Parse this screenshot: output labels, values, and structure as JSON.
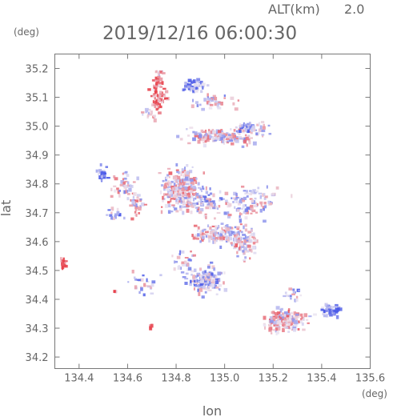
{
  "header": {
    "alt_label": "ALT(km)",
    "alt_value": "2.0",
    "timestamp": "2019/12/16 06:00:30"
  },
  "chart_data": {
    "type": "heatmap",
    "title": "2019/12/16 06:00:30",
    "xlabel": "lon",
    "ylabel": "lat",
    "xunit": "(deg)",
    "yunit": "(deg)",
    "xlim": [
      134.3,
      135.6
    ],
    "ylim": [
      34.16,
      35.25
    ],
    "grid": false,
    "xticks": [
      134.4,
      134.6,
      134.8,
      135.0,
      135.2,
      135.4,
      135.6
    ],
    "xtick_labels": [
      "134.4",
      "134.6",
      "134.8",
      "135.0",
      "135.2",
      "135.4",
      "135.6"
    ],
    "yticks": [
      34.2,
      34.3,
      34.4,
      34.5,
      34.6,
      34.7,
      34.8,
      34.9,
      35.0,
      35.1,
      35.2
    ],
    "ytick_labels": [
      "34.2",
      "34.3",
      "34.4",
      "34.5",
      "34.6",
      "34.7",
      "34.8",
      "34.9",
      "35.0",
      "35.1",
      "35.2"
    ],
    "colors": {
      "positive": "#e8404a",
      "negative": "#4a5ae8",
      "neutral": "#ece6f2"
    },
    "clusters": [
      {
        "lon": 134.72,
        "lat": 35.11,
        "slon": 0.02,
        "slat": 0.04,
        "count": 70,
        "bias": 0.75
      },
      {
        "lon": 134.73,
        "lat": 35.19,
        "slon": 0.01,
        "slat": 0.005,
        "count": 10,
        "bias": 0.2
      },
      {
        "lon": 134.68,
        "lat": 35.05,
        "slon": 0.015,
        "slat": 0.015,
        "count": 15,
        "bias": 0.3
      },
      {
        "lon": 134.87,
        "lat": 35.14,
        "slon": 0.03,
        "slat": 0.015,
        "count": 50,
        "bias": -0.6
      },
      {
        "lon": 134.95,
        "lat": 35.09,
        "slon": 0.06,
        "slat": 0.02,
        "count": 40,
        "bias": -0.1
      },
      {
        "lon": 134.99,
        "lat": 34.97,
        "slon": 0.11,
        "slat": 0.02,
        "count": 170,
        "bias": 0.05
      },
      {
        "lon": 135.09,
        "lat": 35.0,
        "slon": 0.03,
        "slat": 0.012,
        "count": 30,
        "bias": -0.5
      },
      {
        "lon": 135.15,
        "lat": 35.0,
        "slon": 0.02,
        "slat": 0.012,
        "count": 12,
        "bias": -0.2
      },
      {
        "lon": 134.49,
        "lat": 34.84,
        "slon": 0.015,
        "slat": 0.02,
        "count": 20,
        "bias": -0.8
      },
      {
        "lon": 134.57,
        "lat": 34.79,
        "slon": 0.04,
        "slat": 0.03,
        "count": 40,
        "bias": 0.0
      },
      {
        "lon": 134.82,
        "lat": 34.78,
        "slon": 0.06,
        "slat": 0.05,
        "count": 260,
        "bias": 0.1
      },
      {
        "lon": 134.92,
        "lat": 34.74,
        "slon": 0.04,
        "slat": 0.03,
        "count": 60,
        "bias": -0.2
      },
      {
        "lon": 135.1,
        "lat": 34.74,
        "slon": 0.08,
        "slat": 0.04,
        "count": 110,
        "bias": -0.1
      },
      {
        "lon": 134.63,
        "lat": 34.73,
        "slon": 0.02,
        "slat": 0.03,
        "count": 30,
        "bias": 0.1
      },
      {
        "lon": 134.54,
        "lat": 34.7,
        "slon": 0.02,
        "slat": 0.02,
        "count": 15,
        "bias": -0.4
      },
      {
        "lon": 134.97,
        "lat": 34.63,
        "slon": 0.07,
        "slat": 0.025,
        "count": 140,
        "bias": 0.05
      },
      {
        "lon": 135.08,
        "lat": 34.6,
        "slon": 0.04,
        "slat": 0.04,
        "count": 80,
        "bias": 0.1
      },
      {
        "lon": 134.92,
        "lat": 34.47,
        "slon": 0.05,
        "slat": 0.03,
        "count": 150,
        "bias": -0.25
      },
      {
        "lon": 134.83,
        "lat": 34.53,
        "slon": 0.03,
        "slat": 0.03,
        "count": 30,
        "bias": -0.1
      },
      {
        "lon": 134.66,
        "lat": 34.45,
        "slon": 0.04,
        "slat": 0.03,
        "count": 25,
        "bias": -0.2
      },
      {
        "lon": 134.33,
        "lat": 34.53,
        "slon": 0.008,
        "slat": 0.012,
        "count": 16,
        "bias": 0.85
      },
      {
        "lon": 135.25,
        "lat": 34.33,
        "slon": 0.06,
        "slat": 0.025,
        "count": 170,
        "bias": 0.15
      },
      {
        "lon": 135.43,
        "lat": 34.37,
        "slon": 0.03,
        "slat": 0.015,
        "count": 45,
        "bias": -0.65
      },
      {
        "lon": 135.28,
        "lat": 34.42,
        "slon": 0.03,
        "slat": 0.015,
        "count": 18,
        "bias": -0.3
      },
      {
        "lon": 134.69,
        "lat": 34.31,
        "slon": 0.005,
        "slat": 0.005,
        "count": 4,
        "bias": 0.95
      },
      {
        "lon": 134.54,
        "lat": 34.43,
        "slon": 0.005,
        "slat": 0.005,
        "count": 4,
        "bias": 0.9
      }
    ]
  }
}
